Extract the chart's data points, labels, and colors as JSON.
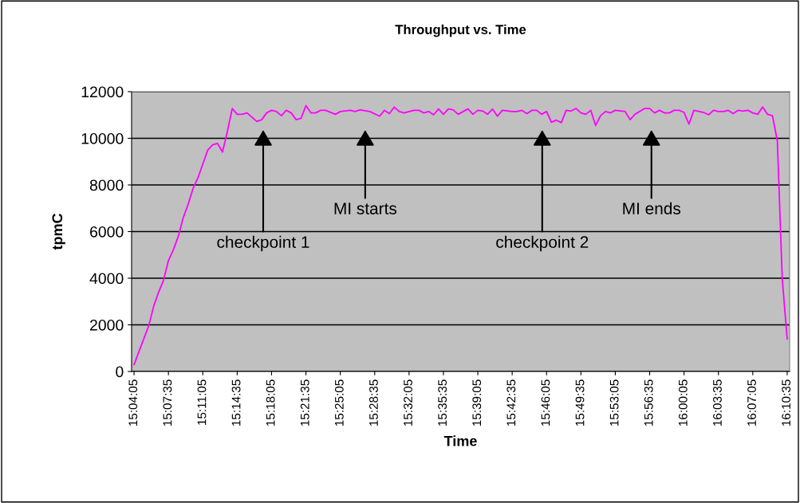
{
  "chart_data": {
    "type": "line",
    "title": "Throughput vs. Time",
    "xlabel": "Time",
    "ylabel": "tpmC",
    "x": [
      15.06806,
      15.09306,
      15.10139,
      15.10972,
      15.11806,
      15.12639,
      15.13472,
      15.14306,
      15.15139,
      15.15972,
      15.16806,
      15.17639,
      15.19306,
      15.20139,
      15.20972,
      15.21806,
      15.22639,
      15.23472,
      15.24306,
      15.25139,
      15.25972,
      15.27639,
      15.28472,
      15.29306,
      15.30139,
      15.30972,
      15.31806,
      15.32639,
      15.33472,
      15.34306,
      15.35139,
      15.35972,
      15.36806,
      15.37639,
      15.38472,
      15.39306,
      15.40972,
      15.41806,
      15.43472,
      15.44306,
      15.45139,
      15.46806,
      15.48472,
      15.49306,
      15.50139,
      15.50972,
      15.51806,
      15.52639,
      15.54306,
      15.55139,
      15.55972,
      15.56806,
      15.57639,
      15.58472,
      15.59306,
      15.60139,
      15.60972,
      15.61806,
      15.63472,
      15.64306,
      15.65139,
      15.65972,
      15.66806,
      15.67639,
      15.68472,
      15.69306,
      15.70972,
      15.71806,
      15.72639,
      15.73472,
      15.74306,
      15.75139,
      15.75972,
      15.76806,
      15.77639,
      15.78472,
      15.79306,
      15.80139,
      15.80972,
      15.81806,
      15.82639,
      15.83472,
      15.84306,
      15.85139,
      15.85972,
      15.86806,
      15.87639,
      15.88472,
      15.90139,
      15.90972,
      15.91806,
      15.93472,
      15.94306,
      15.95139,
      15.95972,
      15.96806,
      15.97639,
      15.98472,
      15.99306,
      16.00139,
      16.00972,
      16.01806,
      16.03472,
      16.04306,
      16.05139,
      16.05972,
      16.06806,
      16.07639,
      16.08472,
      16.09306,
      16.10139,
      16.10972,
      16.11806,
      16.12639,
      16.13472,
      16.14306,
      16.15139,
      16.15972,
      16.16806,
      16.17639
    ],
    "series": [
      {
        "color": "#ff00ff",
        "values": [
          300,
          1970,
          2800,
          3400,
          3910,
          4760,
          5220,
          5790,
          6590,
          7160,
          7840,
          8300,
          9490,
          9720,
          9780,
          9410,
          10290,
          11280,
          11030,
          11030,
          11090,
          10720,
          10800,
          11090,
          11200,
          11150,
          10970,
          11200,
          11090,
          10800,
          10860,
          11400,
          11090,
          11090,
          11200,
          11200,
          11030,
          11150,
          11200,
          11150,
          11220,
          11150,
          10950,
          11200,
          11060,
          11340,
          11150,
          11090,
          11200,
          11200,
          11090,
          11150,
          11010,
          11260,
          11030,
          11260,
          11220,
          11030,
          11260,
          11030,
          11200,
          11170,
          11030,
          11260,
          10950,
          11200,
          11150,
          11150,
          11200,
          11060,
          11200,
          11200,
          11030,
          11150,
          10690,
          10780,
          10670,
          11200,
          11170,
          11280,
          11090,
          11030,
          11200,
          10550,
          10970,
          11150,
          11090,
          11200,
          11150,
          10800,
          11030,
          11280,
          11280,
          11090,
          11200,
          11090,
          11090,
          11200,
          11200,
          11110,
          10610,
          11200,
          11110,
          11010,
          11200,
          11150,
          11150,
          11200,
          11060,
          11200,
          11170,
          11200,
          11090,
          11030,
          11340,
          11030,
          10970,
          9890,
          3970,
          1400
        ]
      }
    ],
    "xlim": [
      15.06389,
      16.18056
    ],
    "xticks": [
      {
        "value": 15.06806,
        "label": "15:04:05"
      },
      {
        "value": 15.12639,
        "label": "15:07:35"
      },
      {
        "value": 15.18472,
        "label": "15:11:05"
      },
      {
        "value": 15.24306,
        "label": "15:14:35"
      },
      {
        "value": 15.30139,
        "label": "15:18:05"
      },
      {
        "value": 15.35972,
        "label": "15:21:35"
      },
      {
        "value": 15.41806,
        "label": "15:25:05"
      },
      {
        "value": 15.47639,
        "label": "15:28:35"
      },
      {
        "value": 15.53472,
        "label": "15:32:05"
      },
      {
        "value": 15.59306,
        "label": "15:35:35"
      },
      {
        "value": 15.65139,
        "label": "15:39:05"
      },
      {
        "value": 15.70972,
        "label": "15:42:35"
      },
      {
        "value": 15.76806,
        "label": "15:46:05"
      },
      {
        "value": 15.82639,
        "label": "15:49:35"
      },
      {
        "value": 15.88472,
        "label": "15:53:05"
      },
      {
        "value": 15.94306,
        "label": "15:56:35"
      },
      {
        "value": 16.00139,
        "label": "16:00:05"
      },
      {
        "value": 16.05972,
        "label": "16:03:35"
      },
      {
        "value": 16.11806,
        "label": "16:07:05"
      },
      {
        "value": 16.17639,
        "label": "16:10:35"
      }
    ],
    "ylim": [
      0,
      12000
    ],
    "yticks": [
      0,
      2000,
      4000,
      6000,
      8000,
      10000,
      12000
    ],
    "grid": "y",
    "legend": false,
    "marker": "none",
    "line_style": "solid",
    "annotations": [
      "checkpoint 1",
      "MI starts",
      "checkpoint 2",
      "MI ends"
    ]
  }
}
